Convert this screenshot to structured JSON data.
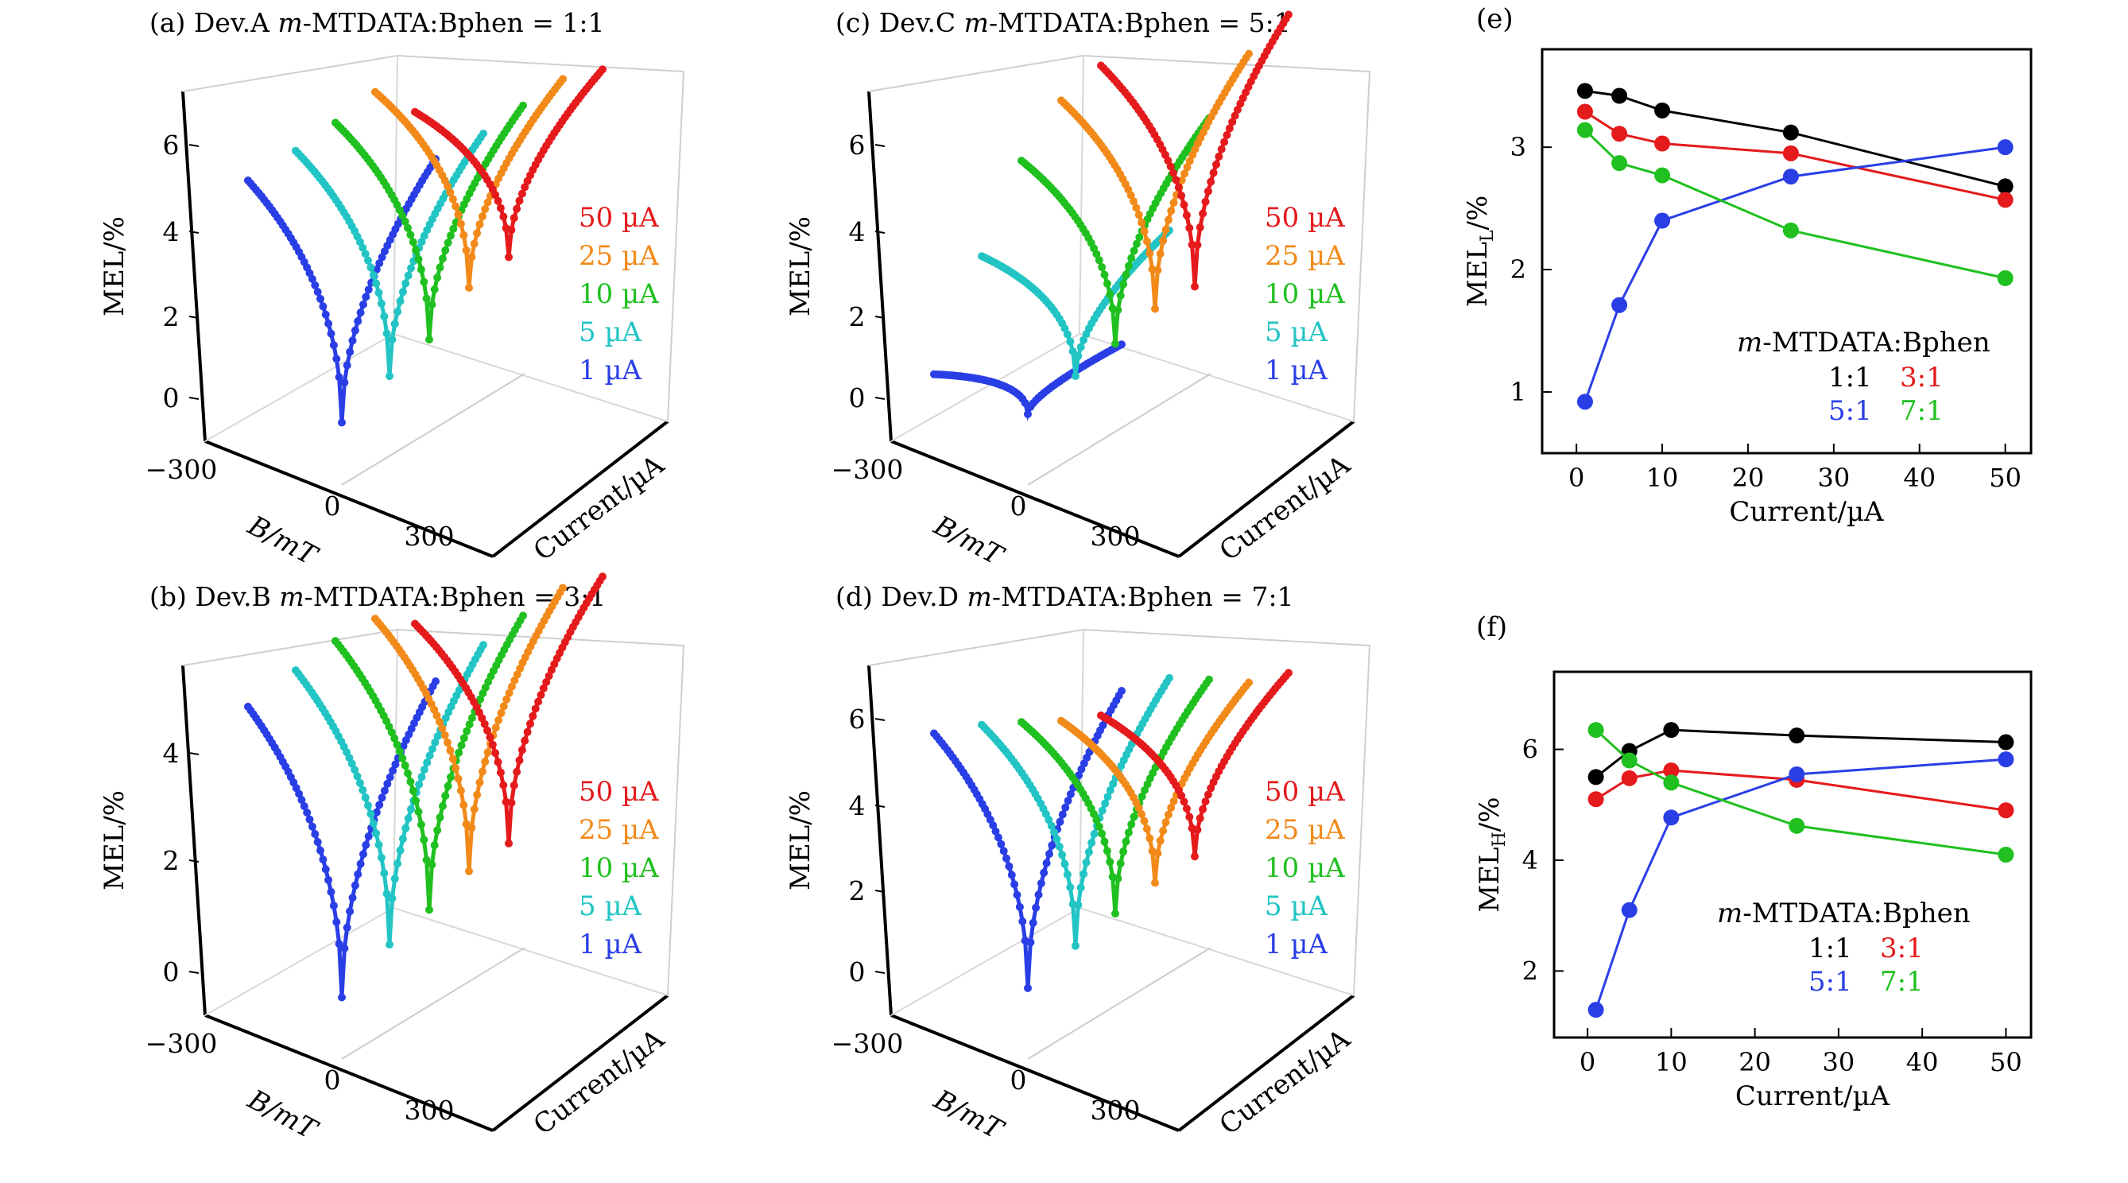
{
  "figure": {
    "colors": {
      "red": "#e41a1c",
      "orange": "#f28a1a",
      "green": "#1fc01f",
      "cyan": "#22c4c4",
      "blue": "#2a3ee6",
      "black": "#000000"
    },
    "panels3d": [
      {
        "label": "(a) Dev.A ",
        "label_italic": "m",
        "label_rest": "-MTDATA:Bphen = 1:1",
        "ylabel": "MEL/%",
        "xlabel": "B/mT",
        "zlabel": "Current/µA",
        "zticks": [
          "0",
          "2",
          "4",
          "6"
        ],
        "xticks": [
          "−300",
          "0",
          "300"
        ],
        "legend": [
          "50 µA",
          "25 µA",
          "10 µA",
          "5 µA",
          "1 µA"
        ]
      },
      {
        "label": "(c) Dev.C ",
        "label_italic": "m",
        "label_rest": "-MTDATA:Bphen = 5:1",
        "ylabel": "MEL/%",
        "xlabel": "B/mT",
        "zlabel": "Current/µA",
        "zticks": [
          "0",
          "2",
          "4",
          "6"
        ],
        "xticks": [
          "−300",
          "0",
          "300"
        ],
        "legend": [
          "50 µA",
          "25 µA",
          "10 µA",
          "5 µA",
          "1 µA"
        ]
      },
      {
        "label": "(b) Dev.B ",
        "label_italic": "m",
        "label_rest": "-MTDATA:Bphen = 3:1",
        "ylabel": "MEL/%",
        "xlabel": "B/mT",
        "zlabel": "Current/µA",
        "zticks": [
          "0",
          "2",
          "4"
        ],
        "xticks": [
          "−300",
          "0",
          "300"
        ],
        "legend": [
          "50 µA",
          "25 µA",
          "10 µA",
          "5 µA",
          "1 µA"
        ]
      },
      {
        "label": "(d) Dev.D ",
        "label_italic": "m",
        "label_rest": "-MTDATA:Bphen = 7:1",
        "ylabel": "MEL/%",
        "xlabel": "B/mT",
        "zlabel": "Current/µA",
        "zticks": [
          "0",
          "2",
          "4",
          "6"
        ],
        "xticks": [
          "−300",
          "0",
          "300"
        ],
        "legend": [
          "50 µA",
          "25 µA",
          "10 µA",
          "5 µA",
          "1 µA"
        ]
      }
    ],
    "panels2d": [
      {
        "label": "(e)",
        "ylabel_main": "MEL",
        "ylabel_sub": "L",
        "ylabel_unit": "/%",
        "xlabel": "Current/µA",
        "legend_title_italic": "m",
        "legend_title_rest": "-MTDATA:Bphen",
        "legend": [
          "1:1",
          "3:1",
          "5:1",
          "7:1"
        ]
      },
      {
        "label": "(f)",
        "ylabel_main": "MEL",
        "ylabel_sub": "H",
        "ylabel_unit": "/%",
        "xlabel": "Current/µA",
        "legend_title_italic": "m",
        "legend_title_rest": "-MTDATA:Bphen",
        "legend": [
          "1:1",
          "3:1",
          "5:1",
          "7:1"
        ]
      }
    ]
  },
  "chart_data": [
    {
      "type": "line",
      "title": "(a) Dev.A m-MTDATA:Bphen = 1:1",
      "xlabel": "B/mT",
      "ylabel": "MEL/%",
      "zlabel": "Current/µA",
      "xlim": [
        -300,
        300
      ],
      "ylim": [
        -0.5,
        7
      ],
      "series": [
        {
          "name": "1 µA",
          "dip_min": -0.7,
          "low_field_edge": 5.8,
          "high_field_edge": 4.8
        },
        {
          "name": "5 µA",
          "dip_min": -0.2,
          "low_field_edge": 5.9,
          "high_field_edge": 4.8
        },
        {
          "name": "10 µA",
          "dip_min": 0.1,
          "low_field_edge": 6.0,
          "high_field_edge": 4.9
        },
        {
          "name": "25 µA",
          "dip_min": 0.8,
          "low_field_edge": 6.2,
          "high_field_edge": 5.0
        },
        {
          "name": "50 µA",
          "dip_min": 1.0,
          "low_field_edge": 5.2,
          "high_field_edge": 4.7
        }
      ]
    },
    {
      "type": "line",
      "title": "(c) Dev.C m-MTDATA:Bphen = 5:1",
      "xlabel": "B/mT",
      "ylabel": "MEL/%",
      "zlabel": "Current/µA",
      "xlim": [
        -300,
        300
      ],
      "ylim": [
        -0.5,
        6.5
      ],
      "series": [
        {
          "name": "1 µA",
          "dip_min": -0.5,
          "low_field_edge": 1.2,
          "high_field_edge": 0.4
        },
        {
          "name": "5 µA",
          "dip_min": -0.2,
          "low_field_edge": 3.4,
          "high_field_edge": 2.5
        },
        {
          "name": "10 µA",
          "dip_min": 0.0,
          "low_field_edge": 5.1,
          "high_field_edge": 4.6
        },
        {
          "name": "25 µA",
          "dip_min": 0.3,
          "low_field_edge": 6.0,
          "high_field_edge": 5.6
        },
        {
          "name": "50 µA",
          "dip_min": 0.3,
          "low_field_edge": 6.3,
          "high_field_edge": 6.0
        }
      ]
    },
    {
      "type": "line",
      "title": "(b) Dev.B m-MTDATA:Bphen = 3:1",
      "xlabel": "B/mT",
      "ylabel": "MEL/%",
      "zlabel": "Current/µA",
      "xlim": [
        -300,
        300
      ],
      "ylim": [
        -0.5,
        5.8
      ],
      "series": [
        {
          "name": "1 µA",
          "dip_min": -0.6,
          "low_field_edge": 5.3,
          "high_field_edge": 4.6
        },
        {
          "name": "5 µA",
          "dip_min": -0.1,
          "low_field_edge": 5.5,
          "high_field_edge": 4.8
        },
        {
          "name": "10 µA",
          "dip_min": 0.1,
          "low_field_edge": 5.6,
          "high_field_edge": 4.9
        },
        {
          "name": "25 µA",
          "dip_min": 0.4,
          "low_field_edge": 5.6,
          "high_field_edge": 5.0
        },
        {
          "name": "50 µA",
          "dip_min": 0.5,
          "low_field_edge": 5.1,
          "high_field_edge": 4.8
        }
      ]
    },
    {
      "type": "line",
      "title": "(d) Dev.D m-MTDATA:Bphen = 7:1",
      "xlabel": "B/mT",
      "ylabel": "MEL/%",
      "zlabel": "Current/µA",
      "xlim": [
        -300,
        300
      ],
      "ylim": [
        -0.5,
        6.5
      ],
      "series": [
        {
          "name": "1 µA",
          "dip_min": -0.5,
          "low_field_edge": 6.3,
          "high_field_edge": 5.8
        },
        {
          "name": "5 µA",
          "dip_min": -0.1,
          "low_field_edge": 5.9,
          "high_field_edge": 5.5
        },
        {
          "name": "10 µA",
          "dip_min": 0.1,
          "low_field_edge": 5.4,
          "high_field_edge": 4.9
        },
        {
          "name": "25 µA",
          "dip_min": 0.3,
          "low_field_edge": 4.9,
          "high_field_edge": 4.3
        },
        {
          "name": "50 µA",
          "dip_min": 0.4,
          "low_field_edge": 4.5,
          "high_field_edge": 4.0
        }
      ]
    },
    {
      "type": "line",
      "title": "(e)",
      "xlabel": "Current/µA",
      "ylabel": "MEL_L/%",
      "xlim": [
        -4,
        53
      ],
      "ylim": [
        0.5,
        3.8
      ],
      "xticks": [
        0,
        10,
        20,
        30,
        40,
        50
      ],
      "yticks": [
        1,
        2,
        3
      ],
      "x": [
        1,
        5,
        10,
        25,
        50
      ],
      "series": [
        {
          "name": "1:1",
          "color": "#000000",
          "values": [
            3.46,
            3.42,
            3.3,
            3.12,
            2.68
          ]
        },
        {
          "name": "3:1",
          "color": "#e41a1c",
          "values": [
            3.29,
            3.11,
            3.03,
            2.95,
            2.57
          ]
        },
        {
          "name": "5:1",
          "color": "#2a3ee6",
          "values": [
            0.92,
            1.71,
            2.4,
            2.76,
            3.0
          ]
        },
        {
          "name": "7:1",
          "color": "#1fc01f",
          "values": [
            3.14,
            2.87,
            2.77,
            2.32,
            1.93
          ]
        }
      ]
    },
    {
      "type": "line",
      "title": "(f)",
      "xlabel": "Current/µA",
      "ylabel": "MEL_H/%",
      "xlim": [
        -4,
        53
      ],
      "ylim": [
        0.8,
        7.4
      ],
      "xticks": [
        0,
        10,
        20,
        30,
        40,
        50
      ],
      "yticks": [
        2,
        4,
        6
      ],
      "x": [
        1,
        5,
        10,
        25,
        50
      ],
      "series": [
        {
          "name": "1:1",
          "color": "#000000",
          "values": [
            5.5,
            5.97,
            6.35,
            6.25,
            6.13
          ]
        },
        {
          "name": "3:1",
          "color": "#e41a1c",
          "values": [
            5.1,
            5.48,
            5.62,
            5.45,
            4.9
          ]
        },
        {
          "name": "5:1",
          "color": "#2a3ee6",
          "values": [
            1.3,
            3.1,
            4.77,
            5.55,
            5.82
          ]
        },
        {
          "name": "7:1",
          "color": "#1fc01f",
          "values": [
            6.35,
            5.8,
            5.4,
            4.62,
            4.1
          ]
        }
      ]
    }
  ]
}
